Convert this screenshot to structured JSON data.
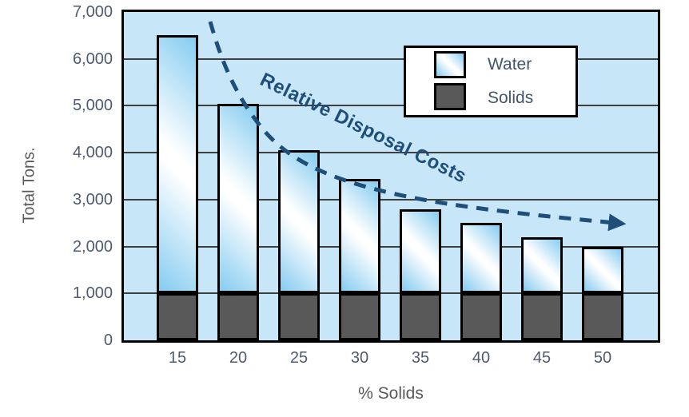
{
  "chart_data": {
    "type": "bar",
    "stacked": true,
    "title": "",
    "xlabel": "% Solids",
    "ylabel": "Total Tons.",
    "categories": [
      "15",
      "20",
      "25",
      "30",
      "35",
      "40",
      "45",
      "50"
    ],
    "series": [
      {
        "name": "Solids",
        "values": [
          1000,
          1000,
          1000,
          1000,
          1000,
          1000,
          1000,
          1000
        ],
        "color": "#595959"
      },
      {
        "name": "Water",
        "values": [
          5500,
          4050,
          3050,
          2450,
          1800,
          1500,
          1200,
          1000
        ],
        "gradient": [
          "#86ccf1",
          "#ffffff"
        ]
      }
    ],
    "total_tons": [
      6500,
      5050,
      4050,
      3450,
      2800,
      2500,
      2200,
      2000
    ],
    "ylim": [
      0,
      7000
    ],
    "ytick_step": 1000,
    "ytick_labels": [
      "0",
      "1,000",
      "2,000",
      "3,000",
      "4,000",
      "5,000",
      "6,000",
      "7,000"
    ],
    "grid": "horizontal",
    "legend": {
      "position": "top-right",
      "entries": [
        {
          "label": "Water",
          "swatch": "blue-white-gradient"
        },
        {
          "label": "Solids",
          "swatch": "dark-gray"
        }
      ]
    },
    "annotation": {
      "text": "Relative Disposal Costs",
      "style": "dashed-curved-arrow",
      "color": "#1f4e79"
    },
    "colors": {
      "plot_background": "#c7e6f8",
      "bar_border": "#000000",
      "gridline": "#3f3f3f",
      "solids_fill": "#595959",
      "water_fill_edge": "#86ccf1",
      "water_fill_center": "#ffffff",
      "arrow": "#1f4e79",
      "tick_text": "#4e5a6e",
      "axis_title_text": "#595959",
      "legend_text": "#44546a"
    }
  }
}
